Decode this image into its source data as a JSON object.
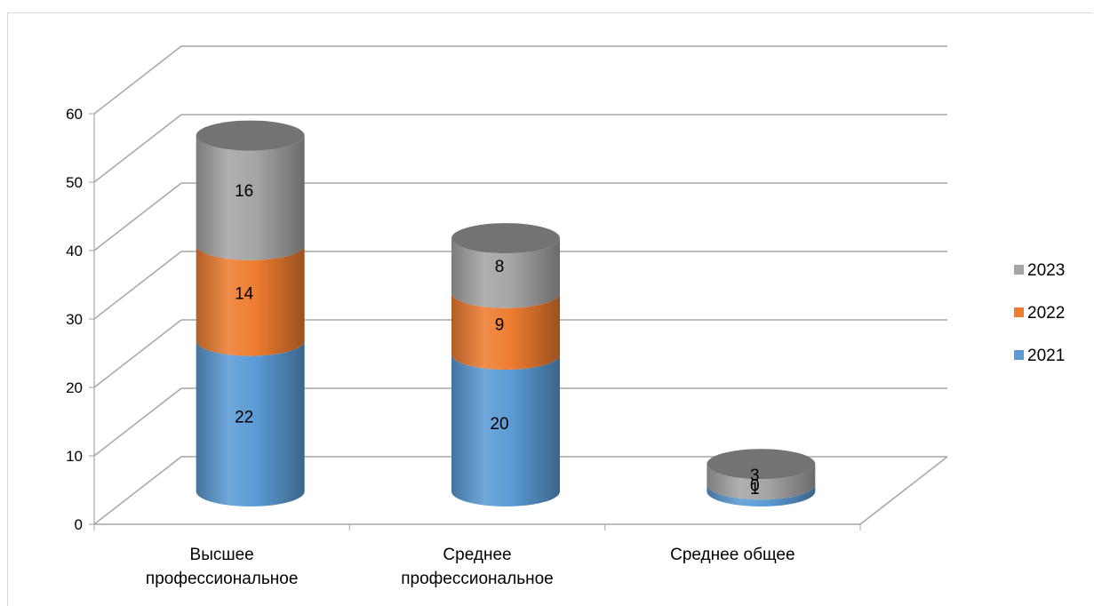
{
  "chart_data": {
    "type": "bar",
    "stacked": true,
    "three_d": true,
    "shape": "cylinder",
    "categories": [
      "Высшее профессиональное",
      "Среднее профессиональное",
      "Среднее общее"
    ],
    "category_lines": [
      [
        "Высшее",
        "профессиональное"
      ],
      [
        "Среднее",
        "профессиональное"
      ],
      [
        "Среднее общее"
      ]
    ],
    "series": [
      {
        "name": "2021",
        "values": [
          22,
          20,
          1
        ],
        "color": "#5b9bd5"
      },
      {
        "name": "2022",
        "values": [
          14,
          9,
          0
        ],
        "color": "#ed7d31"
      },
      {
        "name": "2023",
        "values": [
          16,
          8,
          3
        ],
        "color": "#a5a5a5"
      }
    ],
    "ylim": [
      0,
      60
    ],
    "yticks": [
      0,
      10,
      20,
      30,
      40,
      50,
      60
    ],
    "grid": true,
    "legend_position": "right"
  }
}
